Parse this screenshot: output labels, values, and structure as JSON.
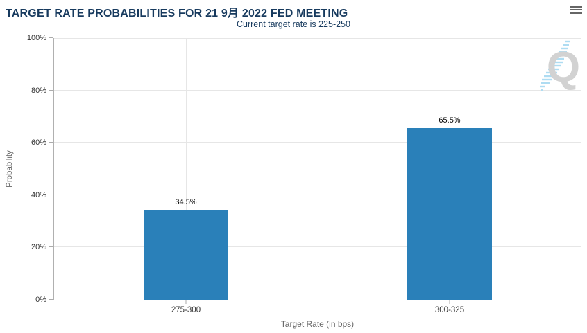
{
  "chart_data": {
    "type": "bar",
    "title": "TARGET RATE PROBABILITIES FOR 21 9月 2022 FED MEETING",
    "subtitle": "Current target rate is 225-250",
    "categories": [
      "275-300",
      "300-325"
    ],
    "values": [
      34.5,
      65.5
    ],
    "value_labels": [
      "34.5%",
      "65.5%"
    ],
    "xlabel": "Target Rate (in bps)",
    "ylabel": "Probability",
    "ylim": [
      0,
      100
    ],
    "yticks": [
      {
        "value": 0,
        "label": "0%"
      },
      {
        "value": 20,
        "label": "20%"
      },
      {
        "value": 40,
        "label": "40%"
      },
      {
        "value": 60,
        "label": "60%"
      },
      {
        "value": 80,
        "label": "80%"
      },
      {
        "value": 100,
        "label": "100%"
      }
    ],
    "grid": true,
    "legend": "none",
    "colors": {
      "bar": "#2a80b9",
      "title": "#173a5e",
      "grid": "#e6e6e6",
      "axis_line": "#ababab",
      "tick_label": "#333333",
      "axis_title": "#666666"
    }
  },
  "watermark": {
    "letter": "Q"
  }
}
